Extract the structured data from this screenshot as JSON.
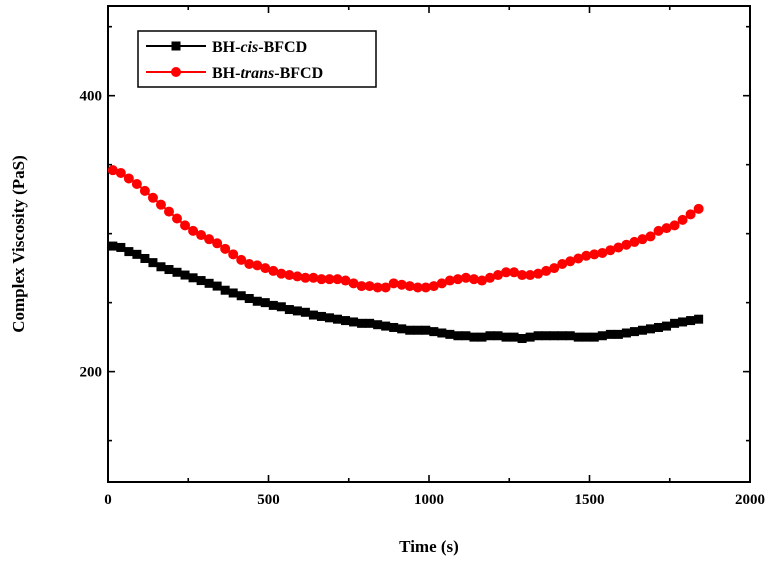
{
  "chart_data": {
    "type": "line",
    "xlabel": "Time (s)",
    "ylabel": "Complex Viscosity (PaS)",
    "xlim": [
      0,
      2000
    ],
    "ylim": [
      120,
      465
    ],
    "xticks": [
      0,
      500,
      1000,
      1500,
      2000
    ],
    "yticks": [
      200,
      400
    ],
    "grid": false,
    "legend_position": "top-left",
    "series": [
      {
        "name_prefix": "BH-",
        "name_italic": "cis",
        "name_suffix": "-BFCD",
        "color": "#000000",
        "marker": "square",
        "x": [
          15,
          40,
          65,
          90,
          115,
          140,
          165,
          190,
          215,
          240,
          265,
          290,
          315,
          340,
          365,
          390,
          415,
          440,
          465,
          490,
          515,
          540,
          565,
          590,
          615,
          640,
          665,
          690,
          715,
          740,
          765,
          790,
          815,
          840,
          865,
          890,
          915,
          940,
          965,
          990,
          1015,
          1040,
          1065,
          1090,
          1115,
          1140,
          1165,
          1190,
          1215,
          1240,
          1265,
          1290,
          1315,
          1340,
          1365,
          1390,
          1415,
          1440,
          1465,
          1490,
          1515,
          1540,
          1565,
          1590,
          1615,
          1640,
          1665,
          1690,
          1715,
          1740,
          1765,
          1790,
          1815,
          1840
        ],
        "y": [
          291,
          290,
          287,
          285,
          282,
          279,
          276,
          274,
          272,
          270,
          268,
          266,
          264,
          262,
          259,
          257,
          255,
          253,
          251,
          250,
          248,
          247,
          245,
          244,
          243,
          241,
          240,
          239,
          238,
          237,
          236,
          235,
          235,
          234,
          233,
          232,
          231,
          230,
          230,
          230,
          229,
          228,
          227,
          226,
          226,
          225,
          225,
          226,
          226,
          225,
          225,
          224,
          225,
          226,
          226,
          226,
          226,
          226,
          225,
          225,
          225,
          226,
          227,
          227,
          228,
          229,
          230,
          231,
          232,
          233,
          235,
          236,
          237,
          238
        ]
      },
      {
        "name_prefix": "BH-",
        "name_italic": "trans",
        "name_suffix": "-BFCD",
        "color": "#ff0000",
        "marker": "circle",
        "x": [
          15,
          40,
          65,
          90,
          115,
          140,
          165,
          190,
          215,
          240,
          265,
          290,
          315,
          340,
          365,
          390,
          415,
          440,
          465,
          490,
          515,
          540,
          565,
          590,
          615,
          640,
          665,
          690,
          715,
          740,
          765,
          790,
          815,
          840,
          865,
          890,
          915,
          940,
          965,
          990,
          1015,
          1040,
          1065,
          1090,
          1115,
          1140,
          1165,
          1190,
          1215,
          1240,
          1265,
          1290,
          1315,
          1340,
          1365,
          1390,
          1415,
          1440,
          1465,
          1490,
          1515,
          1540,
          1565,
          1590,
          1615,
          1640,
          1665,
          1690,
          1715,
          1740,
          1765,
          1790,
          1815,
          1840
        ],
        "y": [
          346,
          344,
          340,
          336,
          331,
          326,
          321,
          316,
          311,
          306,
          302,
          299,
          296,
          293,
          289,
          285,
          281,
          278,
          277,
          275,
          273,
          271,
          270,
          269,
          268,
          268,
          267,
          267,
          267,
          266,
          264,
          262,
          262,
          261,
          261,
          264,
          263,
          262,
          261,
          261,
          262,
          264,
          266,
          267,
          268,
          267,
          266,
          268,
          270,
          272,
          272,
          270,
          270,
          271,
          273,
          275,
          278,
          280,
          282,
          284,
          285,
          286,
          288,
          290,
          292,
          294,
          296,
          298,
          302,
          304,
          306,
          310,
          314,
          318
        ]
      }
    ]
  }
}
